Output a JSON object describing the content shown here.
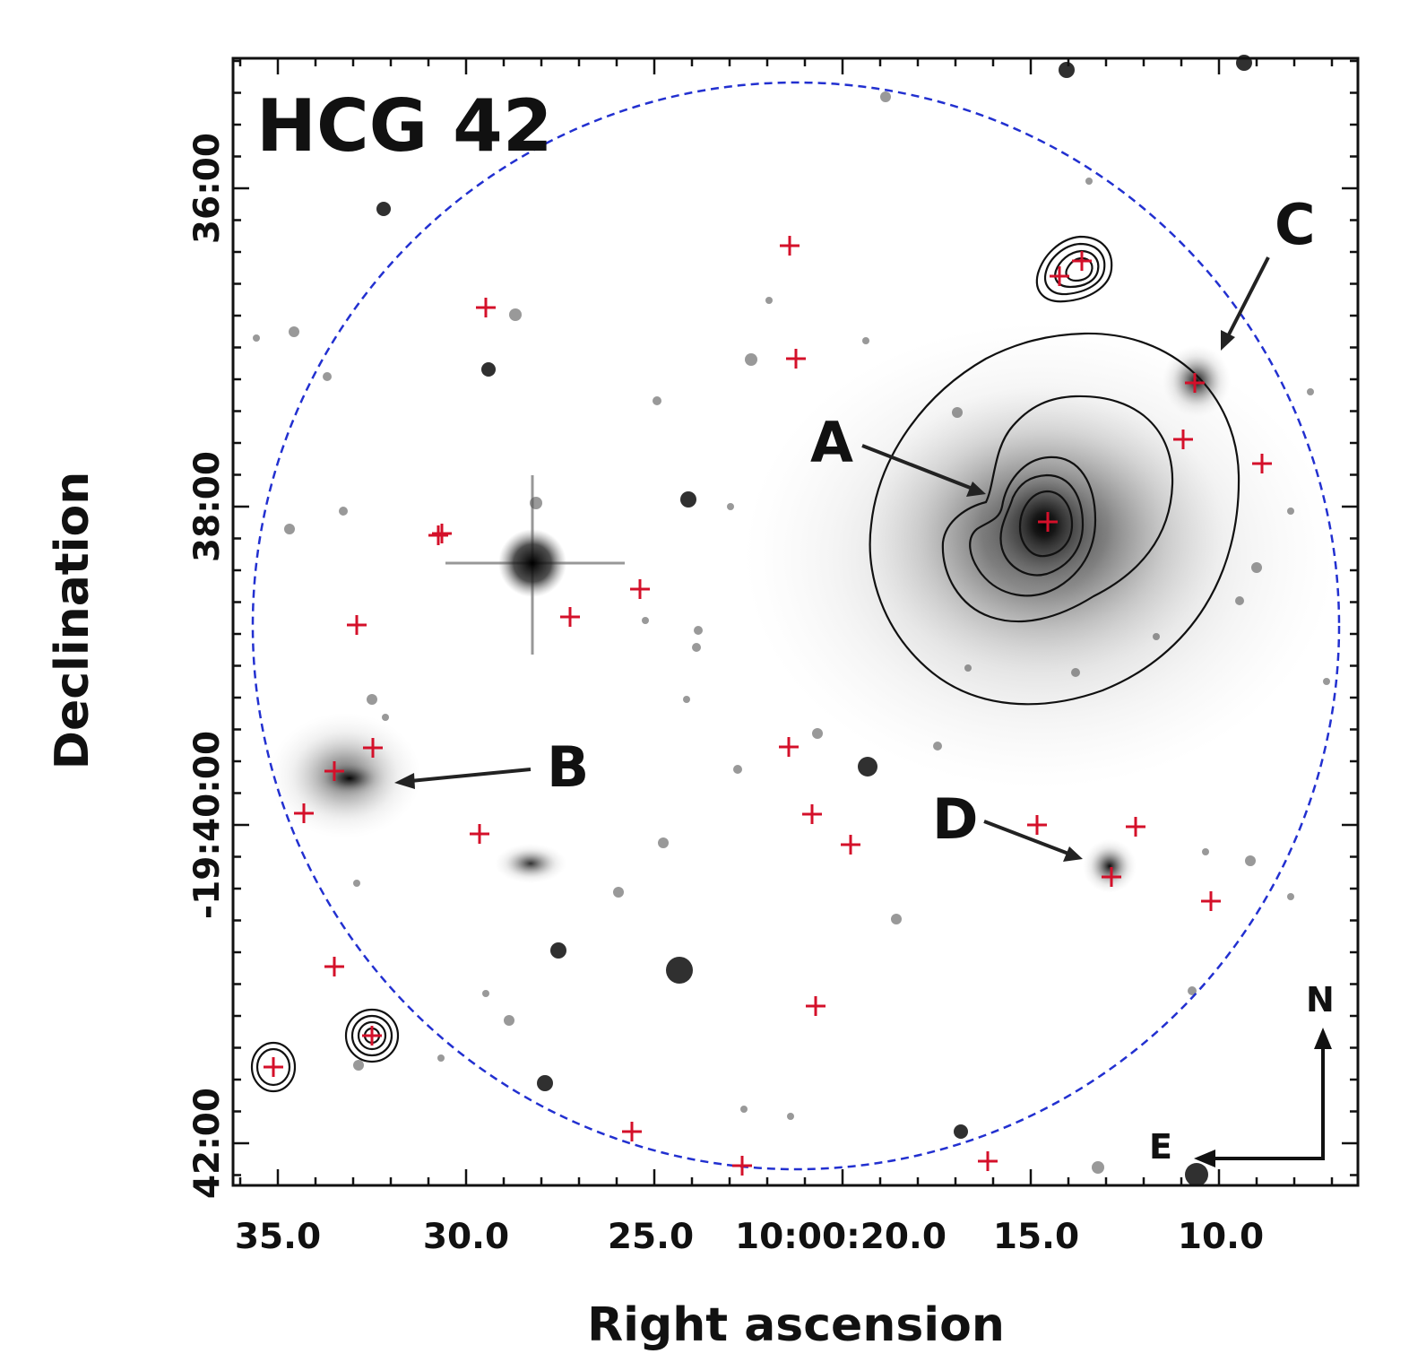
{
  "title": "HCG 42",
  "xlabel": "Right ascension",
  "ylabel": "Declination",
  "x_ticks": [
    "35.0",
    "30.0",
    "25.0",
    "10:00:20.0",
    "15.0",
    "10.0"
  ],
  "y_ticks": [
    "36:00",
    "38:00",
    "-19:40:00",
    "42:00"
  ],
  "galaxies": [
    {
      "id": "A",
      "label": "A"
    },
    {
      "id": "B",
      "label": "B"
    },
    {
      "id": "C",
      "label": "C"
    },
    {
      "id": "D",
      "label": "D"
    }
  ],
  "compass": {
    "north": "N",
    "east": "E"
  },
  "colors": {
    "aperture_circle": "#2230d0",
    "source_marker": "#d4102a",
    "contour": "#111111",
    "arrow": "#222222"
  }
}
